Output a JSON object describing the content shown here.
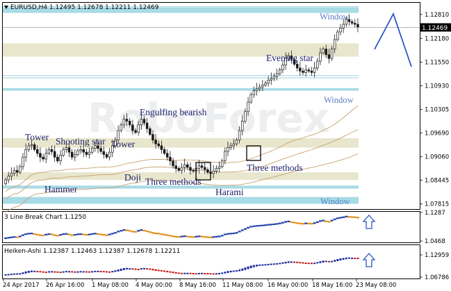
{
  "header": {
    "symbol": "EURUSD,H4",
    "ohlc": "1.12495 1.12678 1.12211 1.12469"
  },
  "watermark": "RoboForex",
  "colors": {
    "bull": "#1a1a1a",
    "bear": "#1a1a1a",
    "zone_band": "#e8e6cc",
    "window_band": "#a8dbe6",
    "ma_line": "#c8a070",
    "annotation_text": "#1c1f6b",
    "window_text": "#5b7fc7",
    "arrow": "#2a56c6",
    "price_label_bg": "#000000",
    "line_break_up": "#1f3ea8",
    "line_break_down": "#e08a10",
    "heiken_up": "#1a2a9a",
    "heiken_down": "#c41616"
  },
  "chart_data": [
    {
      "type": "candlestick",
      "title": "EURUSD,H4",
      "ylim": [
        1.077,
        1.131
      ],
      "y_ticks": [
        "1.12810",
        "1.12180",
        "1.11550",
        "1.10930",
        "1.10305",
        "1.09690",
        "1.09060",
        "1.08445",
        "1.07815"
      ],
      "current_price": "1.12469",
      "x_ticks": [
        "24 Apr 2017",
        "26 Apr 16:00",
        "1 May 08:00",
        "4 May 00:00",
        "8 May 16:00",
        "11 May 08:00",
        "16 May 00:00",
        "18 May 16:00",
        "23 May 08:00"
      ],
      "close": [
        1.0845,
        1.0855,
        1.0862,
        1.087,
        1.0865,
        1.088,
        1.0905,
        1.0925,
        1.0935,
        1.0938,
        1.0925,
        1.0915,
        1.0905,
        1.09,
        1.0915,
        1.0925,
        1.092,
        1.0905,
        1.0895,
        1.091,
        1.0925,
        1.093,
        1.0918,
        1.0905,
        1.0912,
        1.0922,
        1.0925,
        1.0918,
        1.0912,
        1.0918,
        1.0928,
        1.0935,
        1.0928,
        1.092,
        1.0912,
        1.0905,
        1.0918,
        1.0935,
        1.095,
        1.0975,
        1.099,
        1.1005,
        1.1,
        1.099,
        1.0975,
        1.097,
        1.099,
        1.1005,
        1.0995,
        1.098,
        1.0965,
        1.095,
        1.094,
        1.0935,
        1.0925,
        1.0915,
        1.0905,
        1.0895,
        1.0882,
        1.0875,
        1.087,
        1.0878,
        1.0885,
        1.0878,
        1.087,
        1.0868,
        1.0875,
        1.0882,
        1.0878,
        1.0872,
        1.0865,
        1.0862,
        1.0868,
        1.0875,
        1.088,
        1.0895,
        1.092,
        1.093,
        1.0935,
        1.094,
        1.095,
        1.0975,
        1.1,
        1.1025,
        1.105,
        1.107,
        1.108,
        1.1085,
        1.109,
        1.1095,
        1.11,
        1.1108,
        1.1112,
        1.1118,
        1.1125,
        1.1135,
        1.1148,
        1.1165,
        1.1172,
        1.1162,
        1.115,
        1.114,
        1.1132,
        1.1128,
        1.1135,
        1.1132,
        1.1128,
        1.114,
        1.1158,
        1.118,
        1.119,
        1.1175,
        1.1165,
        1.119,
        1.1215,
        1.1235,
        1.1245,
        1.1255,
        1.1268,
        1.1262,
        1.1258,
        1.1255,
        1.1247
      ]
    },
    {
      "type": "line",
      "title": "3 Line Break Chart 1.1250",
      "ylim": [
        1.0468,
        1.1287
      ],
      "y_ticks": [
        "1.1287",
        "1.0468"
      ]
    },
    {
      "type": "line",
      "title": "Heiken-Ashi 1.12387 1.12463 1.12387 1.12678 1.12211",
      "ylim": [
        1.06786,
        1.12959
      ],
      "y_ticks": [
        "1.12959",
        "1.06786"
      ]
    }
  ],
  "annotations": [
    {
      "label": "Window",
      "kind": "window",
      "price": 1.1296
    },
    {
      "label": "Evening star",
      "kind": "pattern",
      "price": 1.121
    },
    {
      "label": "Window",
      "kind": "window",
      "price": 1.108
    },
    {
      "label": "Engulfing bearish",
      "kind": "pattern",
      "price": 1.1033
    },
    {
      "label": "Tower",
      "kind": "pattern",
      "price": 1.0985
    },
    {
      "label": "Shooting star",
      "kind": "pattern",
      "price": 1.0978
    },
    {
      "label": "Tower",
      "kind": "pattern",
      "price": 1.097
    },
    {
      "label": "Doji",
      "kind": "pattern",
      "price": 1.088
    },
    {
      "label": "Three methods",
      "kind": "pattern",
      "price": 1.09
    },
    {
      "label": "Three methods",
      "kind": "pattern",
      "price": 1.087
    },
    {
      "label": "Hammer",
      "kind": "pattern",
      "price": 1.0838
    },
    {
      "label": "Harami",
      "kind": "pattern",
      "price": 1.0833
    },
    {
      "label": "Window",
      "kind": "window",
      "price": 1.0795
    }
  ]
}
